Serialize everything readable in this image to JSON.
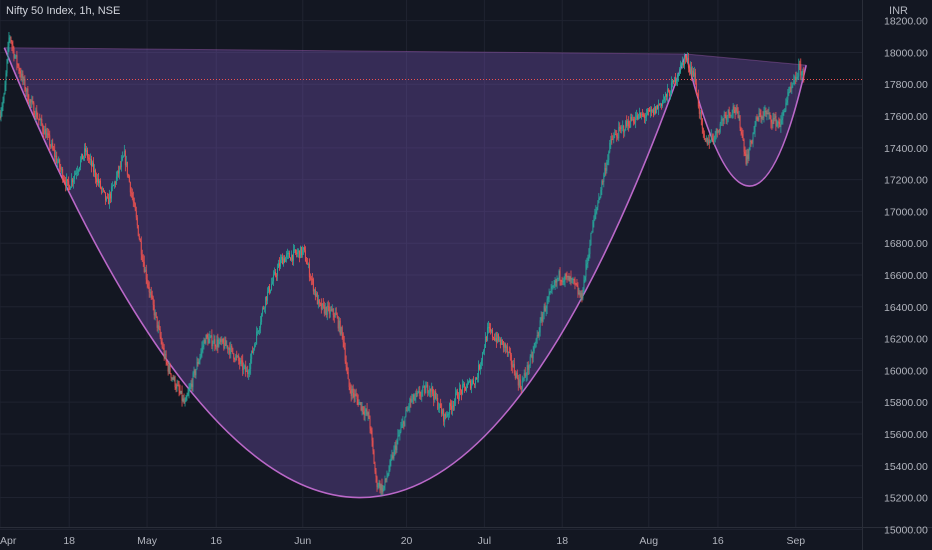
{
  "header": {
    "title": "Nifty 50 Index, 1h, NSE"
  },
  "colors": {
    "background": "#131722",
    "grid": "#1f2330",
    "up": "#26a69a",
    "down": "#ef5350",
    "pattern_fill": "#7e57c2",
    "pattern_line": "#ba68c8",
    "resistance": "#ef5350",
    "text": "#b2b5be"
  },
  "chart_data": {
    "type": "candlestick",
    "title": "Nifty 50 Index, 1h, NSE",
    "unit": "INR",
    "y_ticks": [
      "18200.00",
      "18000.00",
      "17800.00",
      "17600.00",
      "17400.00",
      "17200.00",
      "17000.00",
      "16800.00",
      "16600.00",
      "16400.00",
      "16200.00",
      "16000.00",
      "15800.00",
      "15600.00",
      "15400.00",
      "15200.00",
      "15000.00"
    ],
    "x_ticks": [
      "Apr",
      "18",
      "May",
      "16",
      "Jun",
      "20",
      "Jul",
      "18",
      "Aug",
      "16",
      "Sep"
    ],
    "ylim": [
      14870,
      18330
    ],
    "resistance_level": 17830,
    "price_path": [
      [
        0,
        17600
      ],
      [
        0.6,
        17720
      ],
      [
        1.2,
        18120
      ],
      [
        1.8,
        17980
      ],
      [
        3.5,
        17700
      ],
      [
        5.5,
        17480
      ],
      [
        8,
        17150
      ],
      [
        10,
        17380
      ],
      [
        12.5,
        17050
      ],
      [
        14.5,
        17350
      ],
      [
        15.7,
        17000
      ],
      [
        16.8,
        16650
      ],
      [
        17.6,
        16450
      ],
      [
        19.3,
        16050
      ],
      [
        21.5,
        15780
      ],
      [
        23.8,
        16200
      ],
      [
        26.5,
        16150
      ],
      [
        28.7,
        15980
      ],
      [
        30.8,
        16450
      ],
      [
        32.7,
        16700
      ],
      [
        35.2,
        16750
      ],
      [
        37,
        16400
      ],
      [
        38.9,
        16350
      ],
      [
        39.8,
        16200
      ],
      [
        40.4,
        15900
      ],
      [
        42.8,
        15700
      ],
      [
        43.6,
        15300
      ],
      [
        44.4,
        15250
      ],
      [
        46,
        15550
      ],
      [
        47.5,
        15800
      ],
      [
        49.8,
        15900
      ],
      [
        51.5,
        15700
      ],
      [
        53,
        15850
      ],
      [
        55.2,
        15950
      ],
      [
        56.5,
        16250
      ],
      [
        58.5,
        16150
      ],
      [
        60.3,
        15900
      ],
      [
        61.6,
        16080
      ],
      [
        63,
        16380
      ],
      [
        64.8,
        16600
      ],
      [
        66.4,
        16550
      ],
      [
        67.3,
        16450
      ],
      [
        68.6,
        16900
      ],
      [
        70.8,
        17450
      ],
      [
        73.2,
        17580
      ],
      [
        75.6,
        17620
      ],
      [
        77.5,
        17750
      ],
      [
        79.3,
        17970
      ],
      [
        80.4,
        17850
      ],
      [
        81.5,
        17430
      ],
      [
        82.8,
        17480
      ],
      [
        83.8,
        17600
      ],
      [
        85,
        17650
      ],
      [
        85.7,
        17550
      ],
      [
        86.4,
        17320
      ],
      [
        87,
        17450
      ],
      [
        87.6,
        17580
      ],
      [
        88.5,
        17620
      ],
      [
        89.4,
        17580
      ],
      [
        90.4,
        17550
      ],
      [
        91,
        17700
      ],
      [
        91.9,
        17800
      ],
      [
        92.5,
        17900
      ],
      [
        93,
        17860
      ]
    ],
    "pattern": {
      "cup": {
        "left": [
          0.5,
          18030
        ],
        "bottom": [
          41.5,
          15200
        ],
        "right": [
          79.3,
          17990
        ]
      },
      "handle": {
        "left": [
          79.3,
          17990
        ],
        "bottom": [
          86.5,
          17160
        ],
        "right": [
          93.2,
          17920
        ]
      }
    }
  }
}
